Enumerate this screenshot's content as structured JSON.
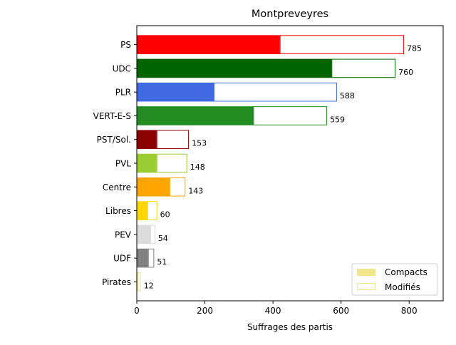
{
  "chart_data": {
    "type": "bar",
    "orientation": "horizontal",
    "stacked": true,
    "title": "Montpreveyres",
    "xlabel": "Suffrages des partis",
    "ylabel": "",
    "xlim": [
      0,
      900
    ],
    "xticks": [
      0,
      200,
      400,
      600,
      800
    ],
    "grid": false,
    "legend_position": "bottom-right",
    "categories": [
      "PS",
      "UDC",
      "PLR",
      "VERT-E-S",
      "PST/Sol.",
      "PVL",
      "Centre",
      "Libres",
      "PEV",
      "UDF",
      "Pirates"
    ],
    "colors": [
      "#ff0000",
      "#006400",
      "#4169e1",
      "#228b22",
      "#8b0000",
      "#9acd32",
      "#ffa500",
      "#ffd700",
      "#dcdcdc",
      "#808080",
      "#f0e68c"
    ],
    "series": [
      {
        "name": "Compacts",
        "values": [
          420,
          572,
          226,
          342,
          58,
          58,
          96,
          31,
          40,
          33,
          3
        ]
      },
      {
        "name": "Modifiés",
        "values": [
          365,
          188,
          362,
          217,
          95,
          90,
          47,
          29,
          14,
          18,
          9
        ]
      }
    ],
    "totals": [
      785,
      760,
      588,
      559,
      153,
      148,
      143,
      60,
      54,
      51,
      12
    ],
    "legend": {
      "compacts_color": "#f0e68c",
      "modifies_edge_color": "#f0e68c"
    }
  }
}
